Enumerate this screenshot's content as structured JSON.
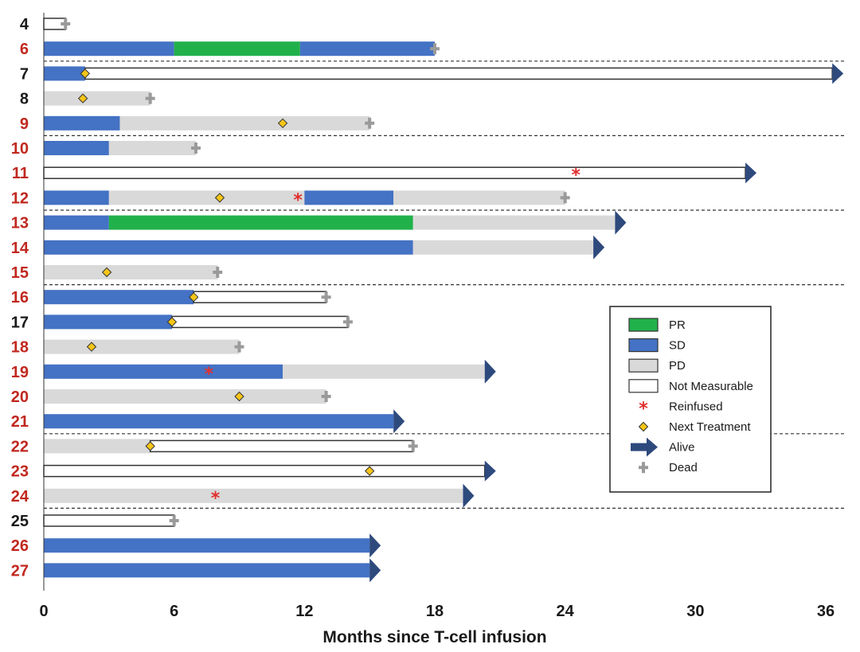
{
  "chart_data": {
    "type": "swimmer",
    "xlabel": "Months since T-cell infusion",
    "xlim": [
      0,
      36
    ],
    "xticks": [
      0,
      6,
      12,
      18,
      24,
      30,
      36
    ],
    "colors": {
      "PR": "#21b14b",
      "SD": "#4472c4",
      "PD": "#d9d9d9",
      "NM": "#ffffff",
      "alive": "#2e4a7d",
      "dead": "#9a9a9a",
      "reinfused": "#e0302e",
      "next": "#f5c518",
      "label_red": "#c0281f",
      "label_black": "#1a1a1a"
    },
    "legend": {
      "placement": "right",
      "items": [
        {
          "key": "PR",
          "label": "PR"
        },
        {
          "key": "SD",
          "label": "SD"
        },
        {
          "key": "PD",
          "label": "PD"
        },
        {
          "key": "NM",
          "label": "Not Measurable"
        },
        {
          "key": "reinfused",
          "label": "Reinfused"
        },
        {
          "key": "next",
          "label": "Next Treatment"
        },
        {
          "key": "alive",
          "label": "Alive"
        },
        {
          "key": "dead",
          "label": "Dead"
        }
      ]
    },
    "group_separators_after": [
      "6",
      "9",
      "12",
      "15",
      "21",
      "24"
    ],
    "patients": [
      {
        "id": "4",
        "label_color": "black",
        "segments": [
          {
            "s": 0,
            "e": 1,
            "t": "NM"
          }
        ],
        "end": "dead",
        "next": [],
        "reinf": []
      },
      {
        "id": "6",
        "label_color": "red",
        "segments": [
          {
            "s": 0,
            "e": 6,
            "t": "SD"
          },
          {
            "s": 6,
            "e": 11.8,
            "t": "PR"
          },
          {
            "s": 11.8,
            "e": 18,
            "t": "SD"
          }
        ],
        "end": "dead",
        "next": [],
        "reinf": []
      },
      {
        "id": "7",
        "label_color": "black",
        "segments": [
          {
            "s": 0,
            "e": 1.9,
            "t": "SD"
          },
          {
            "s": 1.9,
            "e": 36.3,
            "t": "NM"
          }
        ],
        "end": "alive",
        "next": [
          1.9
        ],
        "reinf": []
      },
      {
        "id": "8",
        "label_color": "black",
        "segments": [
          {
            "s": 0,
            "e": 4.9,
            "t": "PD"
          }
        ],
        "end": "dead",
        "next": [
          1.8
        ],
        "reinf": []
      },
      {
        "id": "9",
        "label_color": "red",
        "segments": [
          {
            "s": 0,
            "e": 3.5,
            "t": "SD"
          },
          {
            "s": 3.5,
            "e": 15,
            "t": "PD"
          }
        ],
        "end": "dead",
        "next": [
          11
        ],
        "reinf": []
      },
      {
        "id": "10",
        "label_color": "red",
        "segments": [
          {
            "s": 0,
            "e": 3,
            "t": "SD"
          },
          {
            "s": 3,
            "e": 7,
            "t": "PD"
          }
        ],
        "end": "dead",
        "next": [],
        "reinf": []
      },
      {
        "id": "11",
        "label_color": "red",
        "segments": [
          {
            "s": 0,
            "e": 32.3,
            "t": "NM"
          }
        ],
        "end": "alive",
        "next": [],
        "reinf": [
          24.5
        ]
      },
      {
        "id": "12",
        "label_color": "red",
        "segments": [
          {
            "s": 0,
            "e": 3,
            "t": "SD"
          },
          {
            "s": 3,
            "e": 12,
            "t": "PD"
          },
          {
            "s": 12,
            "e": 16.1,
            "t": "SD"
          },
          {
            "s": 16.1,
            "e": 24,
            "t": "PD"
          }
        ],
        "end": "dead",
        "next": [
          8.1
        ],
        "reinf": [
          11.7
        ]
      },
      {
        "id": "13",
        "label_color": "red",
        "segments": [
          {
            "s": 0,
            "e": 3,
            "t": "SD"
          },
          {
            "s": 3,
            "e": 17,
            "t": "PR"
          },
          {
            "s": 17,
            "e": 26.3,
            "t": "PD"
          }
        ],
        "end": "alive",
        "next": [],
        "reinf": []
      },
      {
        "id": "14",
        "label_color": "red",
        "segments": [
          {
            "s": 0,
            "e": 17,
            "t": "SD"
          },
          {
            "s": 17,
            "e": 25.3,
            "t": "PD"
          }
        ],
        "end": "alive",
        "next": [],
        "reinf": []
      },
      {
        "id": "15",
        "label_color": "red",
        "segments": [
          {
            "s": 0,
            "e": 8,
            "t": "PD"
          }
        ],
        "end": "dead",
        "next": [
          2.9
        ],
        "reinf": []
      },
      {
        "id": "16",
        "label_color": "red",
        "segments": [
          {
            "s": 0,
            "e": 6.9,
            "t": "SD"
          },
          {
            "s": 6.9,
            "e": 13,
            "t": "NM"
          }
        ],
        "end": "dead",
        "next": [
          6.9
        ],
        "reinf": []
      },
      {
        "id": "17",
        "label_color": "black",
        "segments": [
          {
            "s": 0,
            "e": 5.9,
            "t": "SD"
          },
          {
            "s": 5.9,
            "e": 14,
            "t": "NM"
          }
        ],
        "end": "dead",
        "next": [
          5.9
        ],
        "reinf": []
      },
      {
        "id": "18",
        "label_color": "red",
        "segments": [
          {
            "s": 0,
            "e": 9,
            "t": "PD"
          }
        ],
        "end": "dead",
        "next": [
          2.2
        ],
        "reinf": []
      },
      {
        "id": "19",
        "label_color": "red",
        "segments": [
          {
            "s": 0,
            "e": 11,
            "t": "SD"
          },
          {
            "s": 11,
            "e": 20.3,
            "t": "PD"
          }
        ],
        "end": "alive",
        "next": [],
        "reinf": [
          7.6
        ]
      },
      {
        "id": "20",
        "label_color": "red",
        "segments": [
          {
            "s": 0,
            "e": 13,
            "t": "PD"
          }
        ],
        "end": "dead",
        "next": [
          9
        ],
        "reinf": []
      },
      {
        "id": "21",
        "label_color": "red",
        "segments": [
          {
            "s": 0,
            "e": 16.1,
            "t": "SD"
          }
        ],
        "end": "alive",
        "next": [],
        "reinf": []
      },
      {
        "id": "22",
        "label_color": "red",
        "segments": [
          {
            "s": 0,
            "e": 4.9,
            "t": "PD"
          },
          {
            "s": 4.9,
            "e": 17,
            "t": "NM"
          }
        ],
        "end": "dead",
        "next": [
          4.9
        ],
        "reinf": []
      },
      {
        "id": "23",
        "label_color": "red",
        "segments": [
          {
            "s": 0,
            "e": 20.3,
            "t": "NM"
          }
        ],
        "end": "alive",
        "next": [
          15
        ],
        "reinf": []
      },
      {
        "id": "24",
        "label_color": "red",
        "segments": [
          {
            "s": 0,
            "e": 19.3,
            "t": "PD"
          }
        ],
        "end": "alive",
        "next": [],
        "reinf": [
          7.9
        ]
      },
      {
        "id": "25",
        "label_color": "black",
        "segments": [
          {
            "s": 0,
            "e": 6,
            "t": "NM"
          }
        ],
        "end": "dead",
        "next": [],
        "reinf": []
      },
      {
        "id": "26",
        "label_color": "red",
        "segments": [
          {
            "s": 0,
            "e": 15,
            "t": "SD"
          }
        ],
        "end": "alive",
        "next": [],
        "reinf": []
      },
      {
        "id": "27",
        "label_color": "red",
        "segments": [
          {
            "s": 0,
            "e": 15,
            "t": "SD"
          }
        ],
        "end": "alive",
        "next": [],
        "reinf": []
      }
    ]
  }
}
